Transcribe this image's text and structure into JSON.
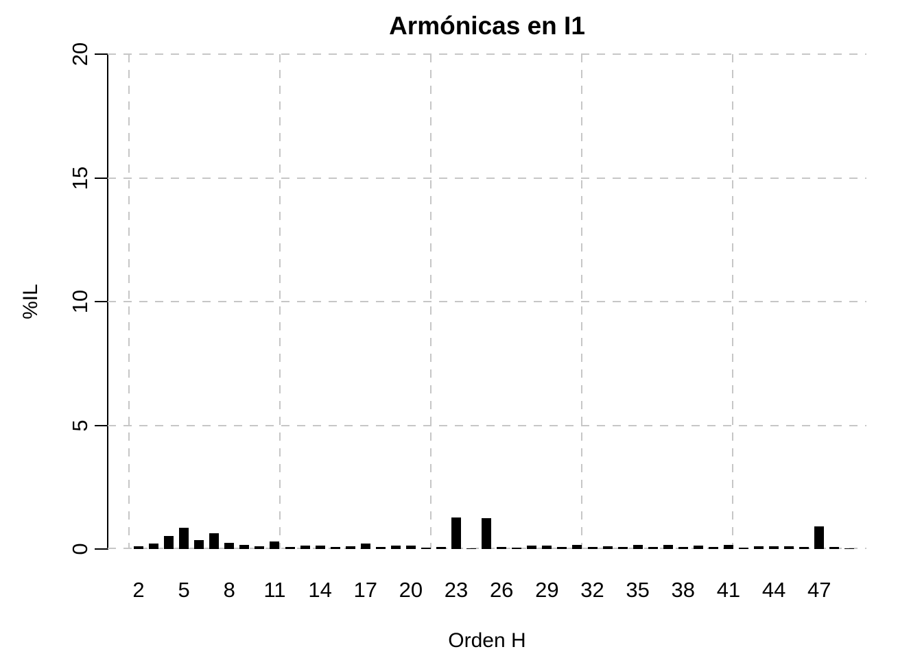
{
  "chart_data": {
    "type": "bar",
    "title": "Armónicas en I1",
    "xlabel": "Orden H",
    "ylabel": "%IL",
    "ylim": [
      0,
      20
    ],
    "yticks": [
      0,
      5,
      10,
      15,
      20
    ],
    "xtick_every": 3,
    "xtick_labels": [
      "2",
      "5",
      "8",
      "11",
      "14",
      "17",
      "20",
      "23",
      "26",
      "29",
      "32",
      "35",
      "38",
      "41",
      "44",
      "47"
    ],
    "categories": [
      2,
      3,
      4,
      5,
      6,
      7,
      8,
      9,
      10,
      11,
      12,
      13,
      14,
      15,
      16,
      17,
      18,
      19,
      20,
      21,
      22,
      23,
      24,
      25,
      26,
      27,
      28,
      29,
      30,
      31,
      32,
      33,
      34,
      35,
      36,
      37,
      38,
      39,
      40,
      41,
      42,
      43,
      44,
      45,
      46,
      47,
      48,
      49
    ],
    "values": [
      0.1,
      0.21,
      0.52,
      0.87,
      0.37,
      0.65,
      0.24,
      0.18,
      0.1,
      0.3,
      0.07,
      0.13,
      0.15,
      0.08,
      0.12,
      0.21,
      0.07,
      0.15,
      0.15,
      0.06,
      0.09,
      1.27,
      0.03,
      1.26,
      0.07,
      0.05,
      0.15,
      0.13,
      0.07,
      0.16,
      0.07,
      0.11,
      0.07,
      0.16,
      0.07,
      0.18,
      0.08,
      0.13,
      0.09,
      0.17,
      0.06,
      0.12,
      0.1,
      0.12,
      0.08,
      0.92,
      0.08,
      0.03
    ],
    "bar_color": "#000000",
    "axis_color": "#000000",
    "grid_color": "#c6c6c6",
    "grid_style": "dashed",
    "legend": "none",
    "background": "#ffffff"
  }
}
